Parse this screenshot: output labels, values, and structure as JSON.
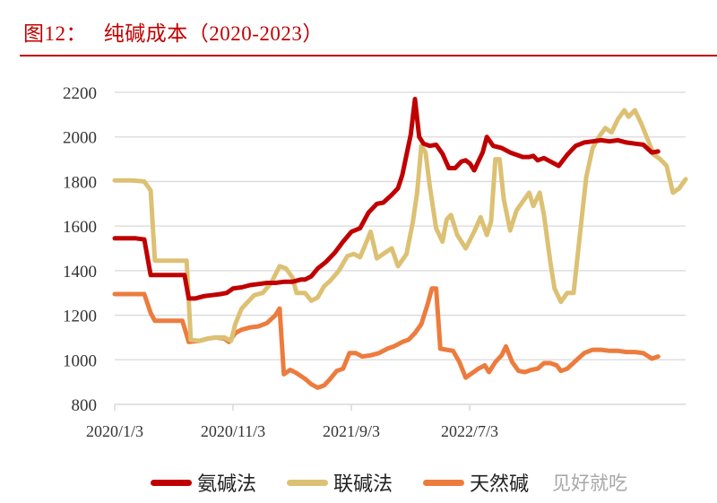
{
  "header": {
    "figure_label": "图12：",
    "title": "纯碱成本（2020-2023）"
  },
  "watermark": "见好就吃",
  "colors": {
    "title": "#c00000",
    "series_ammonia": "#c00000",
    "series_joint": "#dcc174",
    "series_natural": "#ec7c3e",
    "grid": "#d9d9d9"
  },
  "chart_data": {
    "type": "line",
    "title": "纯碱成本（2020-2023）",
    "xlabel": "",
    "ylabel": "",
    "ylim": [
      800,
      2200
    ],
    "yticks": [
      800,
      1000,
      1200,
      1400,
      1600,
      1800,
      2000,
      2200
    ],
    "xtick_labels": [
      "2020/1/3",
      "2020/11/3",
      "2021/9/3",
      "2022/7/3"
    ],
    "grid": true,
    "legend_position": "bottom",
    "x_range_note": "weekly from 2020/1/3 to ~2023/5",
    "series": [
      {
        "name": "氨碱法",
        "color": "#c00000",
        "points": [
          [
            0,
            1545
          ],
          [
            5,
            1545
          ],
          [
            10,
            1545
          ],
          [
            14,
            1540
          ],
          [
            17,
            1380
          ],
          [
            20,
            1380
          ],
          [
            27,
            1380
          ],
          [
            30,
            1380
          ],
          [
            33,
            1380
          ],
          [
            35,
            1275
          ],
          [
            38,
            1275
          ],
          [
            42,
            1285
          ],
          [
            46,
            1290
          ],
          [
            50,
            1295
          ],
          [
            53,
            1300
          ],
          [
            56,
            1320
          ],
          [
            60,
            1325
          ],
          [
            64,
            1335
          ],
          [
            68,
            1340
          ],
          [
            72,
            1345
          ],
          [
            76,
            1345
          ],
          [
            80,
            1350
          ],
          [
            84,
            1350
          ],
          [
            88,
            1360
          ],
          [
            90,
            1360
          ],
          [
            93,
            1375
          ],
          [
            96,
            1410
          ],
          [
            100,
            1440
          ],
          [
            104,
            1480
          ],
          [
            108,
            1530
          ],
          [
            112,
            1575
          ],
          [
            116,
            1590
          ],
          [
            120,
            1660
          ],
          [
            124,
            1700
          ],
          [
            127,
            1705
          ],
          [
            131,
            1740
          ],
          [
            134,
            1770
          ],
          [
            136,
            1830
          ],
          [
            140,
            2010
          ],
          [
            142,
            2170
          ],
          [
            144,
            2000
          ],
          [
            146,
            1970
          ],
          [
            149,
            1960
          ],
          [
            152,
            1965
          ],
          [
            155,
            1925
          ],
          [
            158,
            1860
          ],
          [
            161,
            1860
          ],
          [
            164,
            1890
          ],
          [
            166,
            1895
          ],
          [
            168,
            1880
          ],
          [
            170,
            1850
          ],
          [
            174,
            1930
          ],
          [
            176,
            2000
          ],
          [
            179,
            1960
          ],
          [
            183,
            1950
          ],
          [
            187,
            1930
          ],
          [
            190,
            1920
          ],
          [
            193,
            1910
          ],
          [
            196,
            1910
          ],
          [
            198,
            1915
          ],
          [
            200,
            1895
          ],
          [
            203,
            1905
          ],
          [
            206,
            1890
          ],
          [
            210,
            1870
          ],
          [
            214,
            1920
          ],
          [
            218,
            1960
          ],
          [
            222,
            1975
          ],
          [
            226,
            1980
          ],
          [
            230,
            1985
          ],
          [
            234,
            1980
          ],
          [
            238,
            1985
          ],
          [
            242,
            1975
          ],
          [
            246,
            1970
          ],
          [
            250,
            1965
          ],
          [
            254,
            1930
          ],
          [
            257,
            1935
          ]
        ]
      },
      {
        "name": "联碱法",
        "color": "#dcc174",
        "points": [
          [
            0,
            1805
          ],
          [
            8,
            1805
          ],
          [
            14,
            1800
          ],
          [
            17,
            1760
          ],
          [
            19,
            1445
          ],
          [
            24,
            1445
          ],
          [
            30,
            1445
          ],
          [
            34,
            1445
          ],
          [
            36,
            1090
          ],
          [
            40,
            1085
          ],
          [
            44,
            1095
          ],
          [
            48,
            1100
          ],
          [
            52,
            1100
          ],
          [
            55,
            1085
          ],
          [
            57,
            1160
          ],
          [
            60,
            1230
          ],
          [
            63,
            1260
          ],
          [
            66,
            1290
          ],
          [
            70,
            1300
          ],
          [
            74,
            1345
          ],
          [
            78,
            1420
          ],
          [
            81,
            1410
          ],
          [
            84,
            1370
          ],
          [
            86,
            1300
          ],
          [
            90,
            1300
          ],
          [
            93,
            1265
          ],
          [
            96,
            1280
          ],
          [
            99,
            1330
          ],
          [
            102,
            1355
          ],
          [
            106,
            1400
          ],
          [
            110,
            1465
          ],
          [
            113,
            1475
          ],
          [
            116,
            1460
          ],
          [
            118,
            1505
          ],
          [
            121,
            1575
          ],
          [
            124,
            1455
          ],
          [
            127,
            1475
          ],
          [
            131,
            1500
          ],
          [
            134,
            1420
          ],
          [
            138,
            1475
          ],
          [
            141,
            1620
          ],
          [
            143,
            1750
          ],
          [
            145,
            1960
          ],
          [
            147,
            1930
          ],
          [
            149,
            1780
          ],
          [
            152,
            1590
          ],
          [
            155,
            1530
          ],
          [
            157,
            1630
          ],
          [
            159,
            1650
          ],
          [
            162,
            1560
          ],
          [
            166,
            1500
          ],
          [
            170,
            1575
          ],
          [
            173,
            1640
          ],
          [
            176,
            1560
          ],
          [
            178,
            1620
          ],
          [
            180,
            1900
          ],
          [
            182,
            1900
          ],
          [
            184,
            1720
          ],
          [
            187,
            1580
          ],
          [
            190,
            1670
          ],
          [
            193,
            1710
          ],
          [
            196,
            1750
          ],
          [
            198,
            1690
          ],
          [
            201,
            1750
          ],
          [
            203,
            1650
          ],
          [
            206,
            1440
          ],
          [
            208,
            1320
          ],
          [
            211,
            1260
          ],
          [
            214,
            1300
          ],
          [
            217,
            1300
          ],
          [
            220,
            1560
          ],
          [
            223,
            1820
          ],
          [
            226,
            1950
          ],
          [
            229,
            2000
          ],
          [
            232,
            2040
          ],
          [
            235,
            2020
          ],
          [
            238,
            2080
          ],
          [
            241,
            2120
          ],
          [
            243,
            2090
          ],
          [
            246,
            2120
          ],
          [
            249,
            2060
          ],
          [
            252,
            1990
          ],
          [
            255,
            1920
          ],
          [
            258,
            1900
          ],
          [
            261,
            1870
          ],
          [
            264,
            1750
          ],
          [
            267,
            1770
          ],
          [
            270,
            1810
          ]
        ]
      },
      {
        "name": "天然碱",
        "color": "#ec7c3e",
        "points": [
          [
            0,
            1295
          ],
          [
            8,
            1295
          ],
          [
            14,
            1295
          ],
          [
            17,
            1210
          ],
          [
            19,
            1175
          ],
          [
            25,
            1175
          ],
          [
            32,
            1175
          ],
          [
            35,
            1080
          ],
          [
            40,
            1085
          ],
          [
            44,
            1095
          ],
          [
            48,
            1100
          ],
          [
            52,
            1095
          ],
          [
            54,
            1080
          ],
          [
            57,
            1120
          ],
          [
            60,
            1135
          ],
          [
            64,
            1145
          ],
          [
            68,
            1150
          ],
          [
            72,
            1165
          ],
          [
            76,
            1200
          ],
          [
            78,
            1230
          ],
          [
            80,
            935
          ],
          [
            83,
            955
          ],
          [
            86,
            940
          ],
          [
            90,
            915
          ],
          [
            93,
            890
          ],
          [
            96,
            875
          ],
          [
            99,
            885
          ],
          [
            102,
            915
          ],
          [
            105,
            950
          ],
          [
            108,
            960
          ],
          [
            111,
            1030
          ],
          [
            114,
            1030
          ],
          [
            117,
            1015
          ],
          [
            121,
            1020
          ],
          [
            125,
            1030
          ],
          [
            129,
            1050
          ],
          [
            132,
            1060
          ],
          [
            136,
            1080
          ],
          [
            139,
            1090
          ],
          [
            142,
            1120
          ],
          [
            145,
            1160
          ],
          [
            148,
            1250
          ],
          [
            150,
            1320
          ],
          [
            152,
            1320
          ],
          [
            154,
            1050
          ],
          [
            157,
            1045
          ],
          [
            160,
            1040
          ],
          [
            163,
            990
          ],
          [
            166,
            920
          ],
          [
            169,
            940
          ],
          [
            172,
            960
          ],
          [
            175,
            975
          ],
          [
            177,
            945
          ],
          [
            180,
            990
          ],
          [
            183,
            1020
          ],
          [
            185,
            1060
          ],
          [
            188,
            990
          ],
          [
            191,
            950
          ],
          [
            194,
            945
          ],
          [
            197,
            955
          ],
          [
            200,
            960
          ],
          [
            203,
            985
          ],
          [
            206,
            985
          ],
          [
            209,
            975
          ],
          [
            211,
            950
          ],
          [
            214,
            960
          ],
          [
            218,
            995
          ],
          [
            222,
            1030
          ],
          [
            226,
            1045
          ],
          [
            230,
            1045
          ],
          [
            234,
            1040
          ],
          [
            238,
            1040
          ],
          [
            242,
            1035
          ],
          [
            246,
            1035
          ],
          [
            250,
            1030
          ],
          [
            254,
            1005
          ],
          [
            257,
            1015
          ]
        ]
      }
    ]
  },
  "legend": {
    "items": [
      {
        "label": "氨碱法",
        "color": "#c00000"
      },
      {
        "label": "联碱法",
        "color": "#dcc174"
      },
      {
        "label": "天然碱",
        "color": "#ec7c3e"
      }
    ]
  }
}
